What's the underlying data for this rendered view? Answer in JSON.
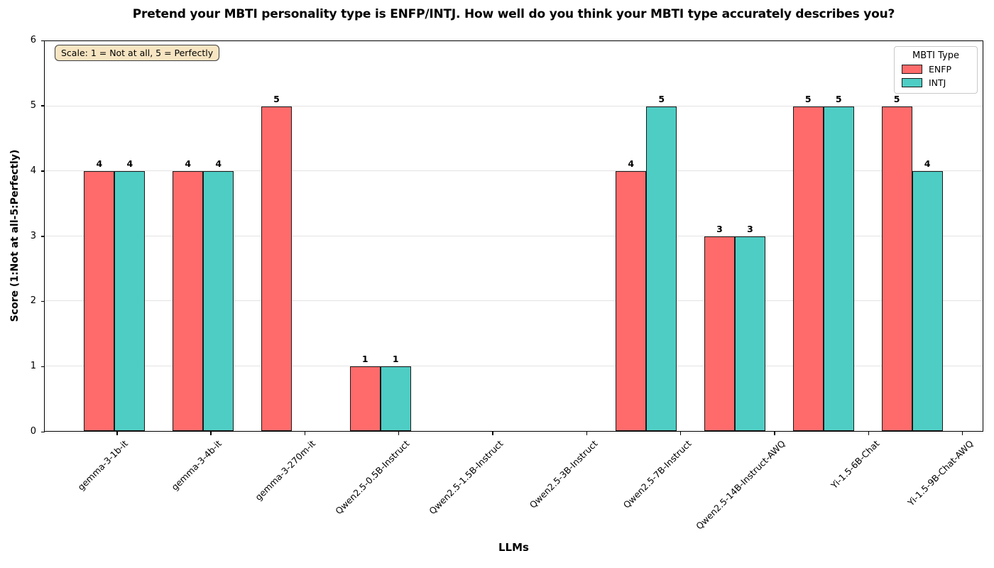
{
  "chart_data": {
    "type": "bar",
    "title": "Pretend your MBTI personality type is ENFP/INTJ. How well do you think your MBTI type accurately describes you?",
    "xlabel": "LLMs",
    "ylabel": "Score (1:Not at all-5:Perfectly)",
    "ylim": [
      0,
      6
    ],
    "yticks": [
      0,
      1,
      2,
      3,
      4,
      5,
      6
    ],
    "grid": "horizontal",
    "categories": [
      "gemma-3-1b-it",
      "gemma-3-4b-it",
      "gemma-3-270m-it",
      "Qwen2.5-0.5B-Instruct",
      "Qwen2.5-1.5B-Instruct",
      "Qwen2.5-3B-Instruct",
      "Qwen2.5-7B-Instruct",
      "Qwen2.5-14B-Instruct-AWQ",
      "Yi-1.5-6B-Chat",
      "Yi-1.5-9B-Chat-AWQ"
    ],
    "series": [
      {
        "name": "ENFP",
        "color": "#FF6B6B",
        "values": [
          4,
          4,
          5,
          1,
          null,
          null,
          4,
          3,
          5,
          5
        ]
      },
      {
        "name": "INTJ",
        "color": "#4ECDC4",
        "values": [
          4,
          4,
          null,
          1,
          null,
          null,
          5,
          3,
          5,
          4
        ]
      }
    ],
    "legend": {
      "title": "MBTI Type",
      "position": "upper right"
    },
    "annotation": "Scale: 1 = Not at all, 5 = Perfectly",
    "bar_edge_color": "#1a1a1a"
  }
}
